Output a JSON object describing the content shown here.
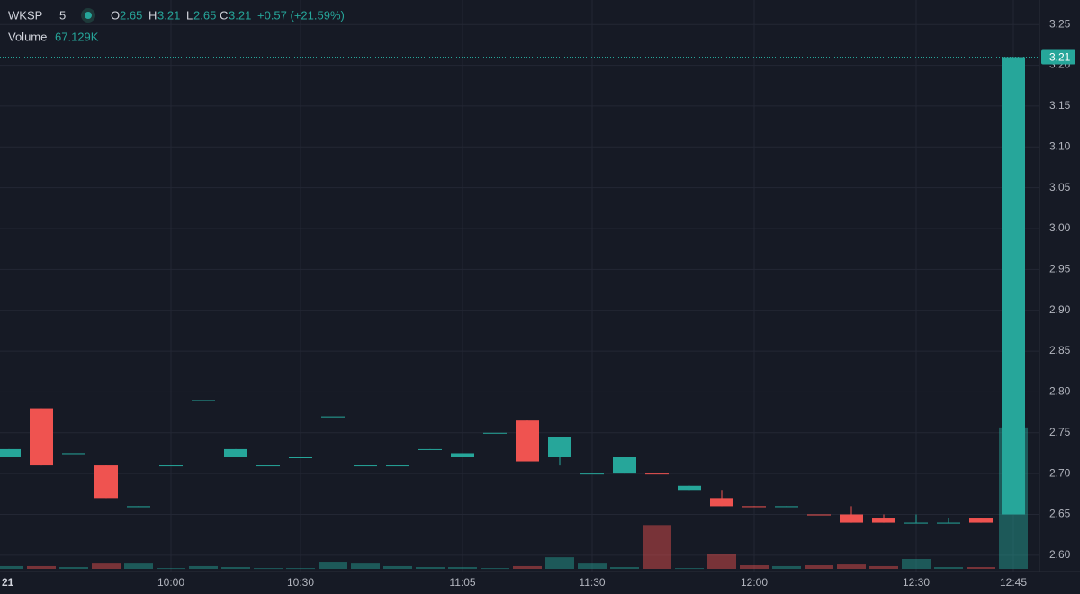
{
  "chart_data": {
    "type": "candlestick",
    "symbol": "WKSP",
    "interval": "5",
    "legend": {
      "open_label": "O",
      "high_label": "H",
      "low_label": "L",
      "close_label": "C",
      "change": "+0.57 (+21.59%)",
      "volume_label": "Volume",
      "volume_value": "67.129K"
    },
    "categories": [
      "21",
      null,
      null,
      null,
      null,
      "10:00",
      null,
      null,
      null,
      "10:30",
      null,
      null,
      null,
      null,
      "11:05",
      null,
      null,
      null,
      "11:30",
      null,
      null,
      null,
      null,
      "12:00",
      null,
      null,
      null,
      null,
      "12:30",
      null,
      null,
      "12:45"
    ],
    "open": [
      2.72,
      2.78,
      2.725,
      2.71,
      2.66,
      2.71,
      2.79,
      2.72,
      2.71,
      2.72,
      2.77,
      2.71,
      2.71,
      2.73,
      2.72,
      2.75,
      2.765,
      2.72,
      2.7,
      2.7,
      2.7,
      2.68,
      2.67,
      2.66,
      2.66,
      2.65,
      2.65,
      2.645,
      2.64,
      2.64,
      2.645,
      2.65
    ],
    "high": [
      2.73,
      2.78,
      2.725,
      2.71,
      2.66,
      2.71,
      2.79,
      2.73,
      2.71,
      2.72,
      2.77,
      2.71,
      2.71,
      2.73,
      2.725,
      2.75,
      2.765,
      2.745,
      2.7,
      2.72,
      2.7,
      2.685,
      2.68,
      2.66,
      2.66,
      2.65,
      2.66,
      2.65,
      2.65,
      2.645,
      2.645,
      3.21
    ],
    "low": [
      2.72,
      2.71,
      2.725,
      2.67,
      2.66,
      2.71,
      2.79,
      2.72,
      2.71,
      2.72,
      2.77,
      2.71,
      2.71,
      2.73,
      2.72,
      2.75,
      2.715,
      2.71,
      2.7,
      2.7,
      2.7,
      2.68,
      2.66,
      2.66,
      2.66,
      2.65,
      2.64,
      2.64,
      2.64,
      2.64,
      2.64,
      2.65
    ],
    "close": [
      2.73,
      2.71,
      2.725,
      2.67,
      2.66,
      2.71,
      2.79,
      2.73,
      2.71,
      2.72,
      2.77,
      2.71,
      2.71,
      2.73,
      2.725,
      2.75,
      2.715,
      2.745,
      2.7,
      2.72,
      2.7,
      2.685,
      2.66,
      2.66,
      2.66,
      2.65,
      2.64,
      2.64,
      2.64,
      2.64,
      2.64,
      3.21
    ],
    "volume": [
      1300,
      1300,
      850,
      2500,
      2500,
      400,
      1300,
      850,
      400,
      400,
      3400,
      2500,
      1300,
      850,
      850,
      400,
      1300,
      5500,
      2500,
      850,
      20800,
      400,
      7200,
      1700,
      1300,
      1700,
      2100,
      1300,
      4700,
      850,
      850,
      67129
    ],
    "directions": [
      "up",
      "down",
      "up",
      "down",
      "up",
      "up",
      "up",
      "up",
      "up",
      "up",
      "up",
      "up",
      "up",
      "up",
      "up",
      "up",
      "down",
      "up",
      "up",
      "up",
      "down",
      "up",
      "down",
      "down",
      "up",
      "down",
      "down",
      "down",
      "up",
      "up",
      "down",
      "up"
    ],
    "up_color": "#26a69a",
    "down_color": "#ef5350",
    "ylim": [
      2.58,
      3.28
    ],
    "yticks": [
      {
        "value": 2.6,
        "label": "2.60"
      },
      2.65,
      {
        "value": 2.7,
        "label": "2.70"
      },
      2.75,
      {
        "value": 2.8,
        "label": "2.80"
      },
      2.85,
      {
        "value": 2.9,
        "label": "2.90"
      },
      2.95,
      {
        "value": 3.0,
        "label": "3.00"
      },
      3.05,
      {
        "value": 3.1,
        "label": "3.10"
      },
      3.15,
      {
        "value": 3.2,
        "label": "3.20"
      },
      3.25
    ],
    "volume_ylim": [
      0,
      270000
    ],
    "grid": true
  }
}
